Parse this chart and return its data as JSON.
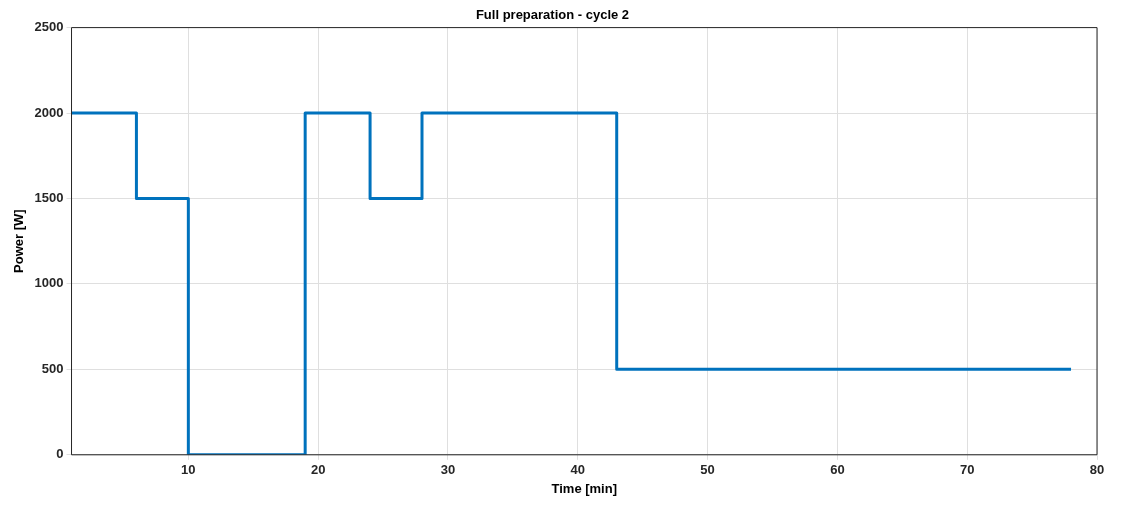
{
  "chart_data": {
    "type": "step",
    "title": "Full preparation - cycle 2",
    "xlabel": "Time [min]",
    "ylabel": "Power [W]",
    "x": [
      1,
      6,
      10,
      19,
      24,
      28,
      43,
      78
    ],
    "series": [
      {
        "color": "#0072bd",
        "values": [
          2000,
          1500,
          0,
          2000,
          1500,
          2000,
          500,
          500
        ]
      }
    ],
    "xlim": [
      1,
      80
    ],
    "xticks": [
      10,
      20,
      30,
      40,
      50,
      60,
      70,
      80
    ],
    "ylim": [
      0,
      2500
    ],
    "yticks": [
      0,
      500,
      1000,
      1500,
      2000,
      2500
    ],
    "grid": true,
    "legend": false
  }
}
